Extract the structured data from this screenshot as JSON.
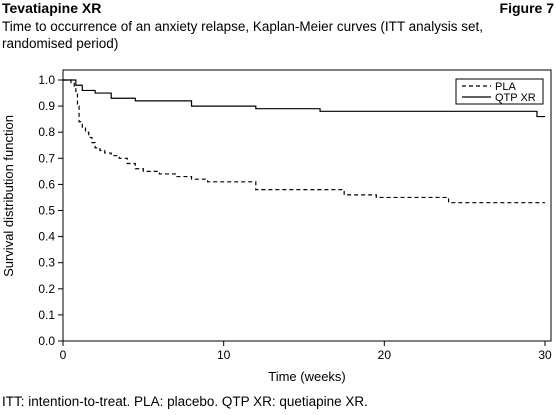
{
  "header": {
    "drug_name": "Tevatiapine XR",
    "figure_label": "Figure 7",
    "subtitle": "Time to occurrence of an anxiety relapse, Kaplan-Meier curves (ITT analysis set, randomised period)"
  },
  "footnote": "ITT: intention-to-treat. PLA: placebo. QTP XR: quetiapine XR.",
  "chart_data": {
    "type": "line",
    "step": true,
    "xlabel": "Time (weeks)",
    "ylabel": "Survival distribution function",
    "xlim": [
      0,
      30
    ],
    "ylim": [
      0,
      1.0
    ],
    "xticks": [
      0,
      10,
      20,
      30
    ],
    "yticks": [
      0.0,
      0.1,
      0.2,
      0.3,
      0.4,
      0.5,
      0.6,
      0.7,
      0.8,
      0.9,
      1.0
    ],
    "ytick_labels": [
      "0.0",
      "0.1",
      "0.2",
      "0.3",
      "0.4",
      "0.5",
      "0.6",
      "0.7",
      "0.8",
      "0.9",
      "1.0"
    ],
    "grid": false,
    "legend_position": "top-right",
    "series": [
      {
        "name": "PLA",
        "style": "dashed",
        "color": "#000000",
        "x": [
          0,
          0.5,
          0.7,
          0.8,
          0.9,
          1.0,
          1.2,
          1.4,
          1.6,
          1.8,
          2.0,
          2.3,
          2.6,
          3.0,
          3.5,
          4.0,
          4.5,
          5.0,
          6.0,
          7.0,
          8.0,
          9.0,
          12.0,
          17.5,
          19.5,
          24.0,
          30.0
        ],
        "y": [
          1.0,
          0.99,
          0.97,
          0.95,
          0.9,
          0.84,
          0.82,
          0.8,
          0.78,
          0.76,
          0.74,
          0.73,
          0.72,
          0.71,
          0.7,
          0.68,
          0.66,
          0.65,
          0.64,
          0.63,
          0.62,
          0.61,
          0.58,
          0.56,
          0.55,
          0.53,
          0.53
        ]
      },
      {
        "name": "QTP XR",
        "style": "solid",
        "color": "#000000",
        "x": [
          0,
          0.8,
          1.2,
          2.0,
          3.0,
          4.5,
          8.0,
          12.0,
          16.0,
          29.0,
          29.5,
          30.0
        ],
        "y": [
          1.0,
          0.98,
          0.96,
          0.95,
          0.93,
          0.92,
          0.9,
          0.89,
          0.88,
          0.88,
          0.86,
          0.86
        ]
      }
    ]
  }
}
